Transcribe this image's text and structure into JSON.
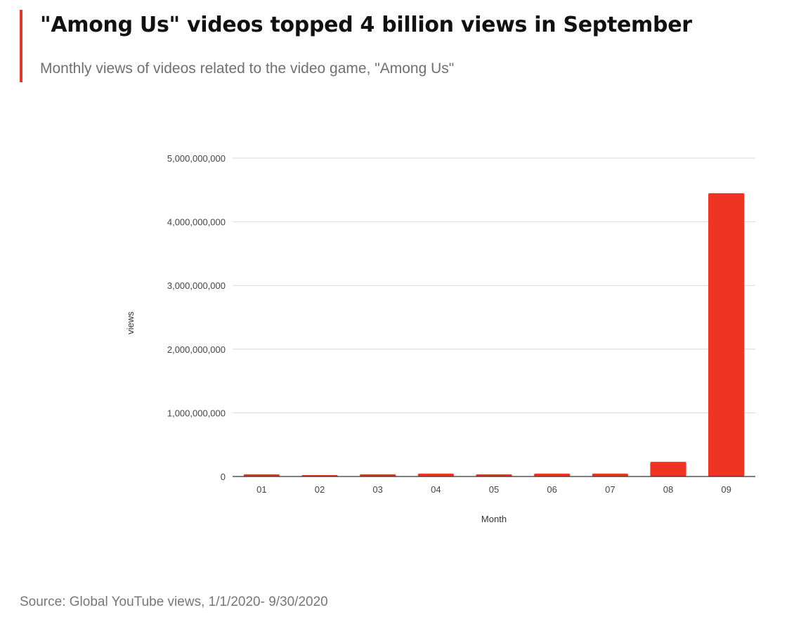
{
  "header": {
    "title": "\"Among Us\" videos topped 4 billion views in September",
    "subtitle": "Monthly views of videos related to the video game, \"Among Us\""
  },
  "footer": {
    "source": "Source: Global YouTube views, 1/1/2020- 9/30/2020"
  },
  "colors": {
    "accent": "#e03a2f",
    "bar": "#ee3524",
    "grid": "#d9d9d9",
    "baseline": "#333333"
  },
  "chart_data": {
    "type": "bar",
    "title": "\"Among Us\" videos topped 4 billion views in September",
    "subtitle": "Monthly views of videos related to the video game, \"Among Us\"",
    "xlabel": "Month",
    "ylabel": "views",
    "categories": [
      "01",
      "02",
      "03",
      "04",
      "05",
      "06",
      "07",
      "08",
      "09"
    ],
    "values": [
      35000000,
      20000000,
      35000000,
      45000000,
      35000000,
      45000000,
      45000000,
      230000000,
      4450000000
    ],
    "ylim": [
      0,
      5000000000
    ],
    "yticks": [
      0,
      1000000000,
      2000000000,
      3000000000,
      4000000000,
      5000000000
    ],
    "ytick_labels": [
      "0",
      "1,000,000,000",
      "2,000,000,000",
      "3,000,000,000",
      "4,000,000,000",
      "5,000,000,000"
    ],
    "grid": true,
    "legend": "none",
    "source": "Source: Global YouTube views, 1/1/2020- 9/30/2020"
  }
}
